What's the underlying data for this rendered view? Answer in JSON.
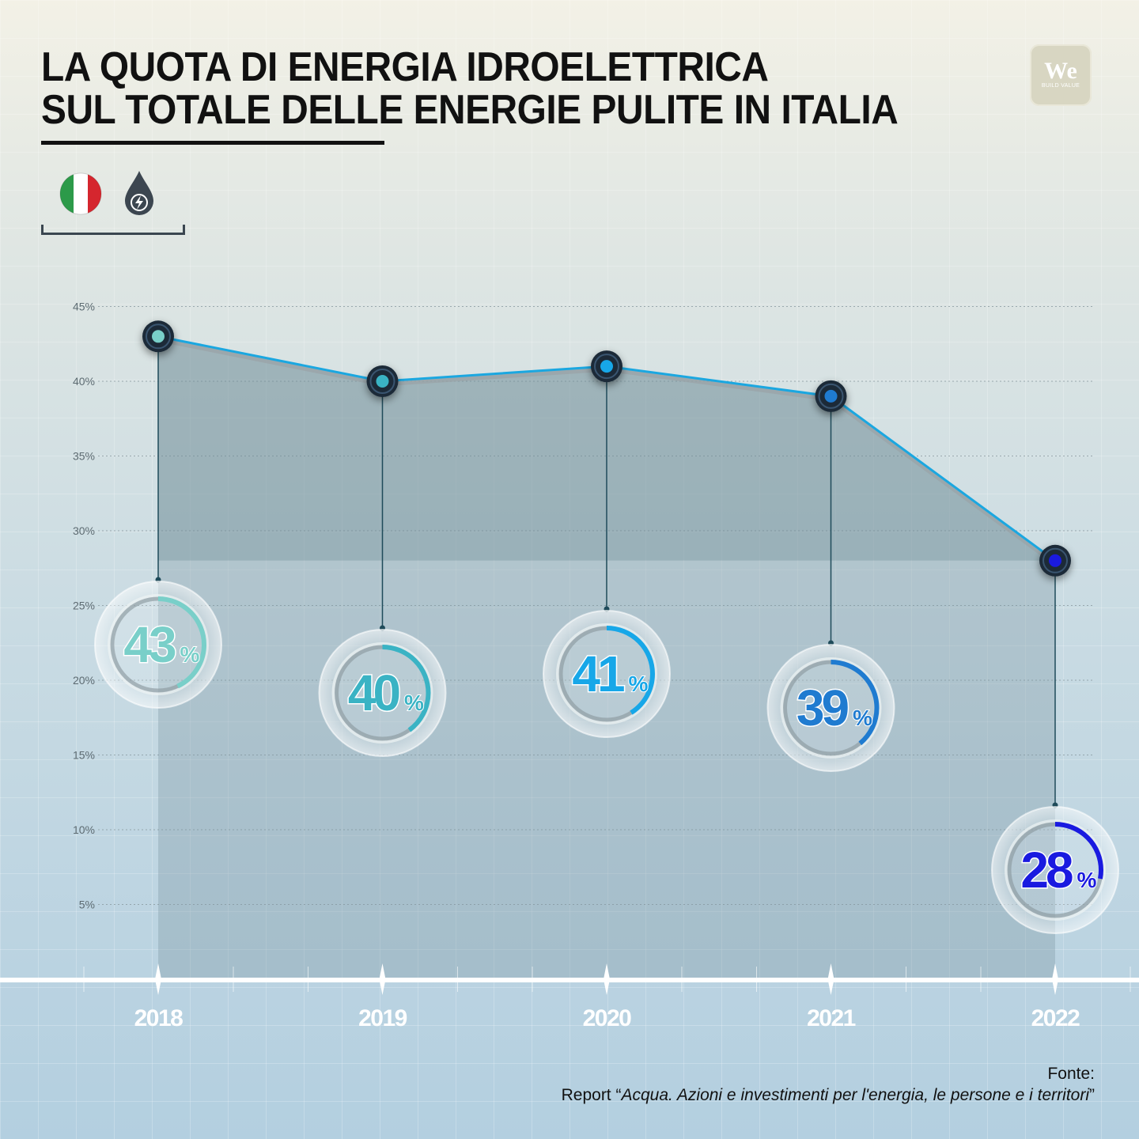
{
  "title": {
    "line1": "LA QUOTA DI ENERGIA IDROELETTRICA",
    "line2": "SUL TOTALE DELLE ENERGIE PULITE IN ITALIA"
  },
  "logo": {
    "main": "We",
    "sub": "BUILD VALUE"
  },
  "icons": [
    "italy-flag-icon",
    "hydro-energy-drop-icon"
  ],
  "colors": {
    "line": "#1ba7e0",
    "area": "#7d97a4",
    "point_colors": [
      "#79cfc9",
      "#3ab3c4",
      "#17a7e8",
      "#1f7bd0",
      "#1a1ae0"
    ]
  },
  "chart_data": {
    "type": "line",
    "x": [
      "2018",
      "2019",
      "2020",
      "2021",
      "2022"
    ],
    "series": [
      {
        "values": [
          43,
          40,
          41,
          39,
          28
        ]
      }
    ],
    "data_labels": [
      "43",
      "40",
      "41",
      "39",
      "28"
    ],
    "label_unit": "%",
    "y_ticks": [
      "5%",
      "10%",
      "15%",
      "20%",
      "25%",
      "30%",
      "35%",
      "40%",
      "45%"
    ],
    "ylim": [
      0,
      45
    ],
    "grid": true,
    "xlabel": "",
    "ylabel": ""
  },
  "source": {
    "label": "Fonte:",
    "prefix": "Report “",
    "title": "Acqua. Azioni e investimenti per l'energia, le persone e i territori",
    "suffix": "”"
  }
}
